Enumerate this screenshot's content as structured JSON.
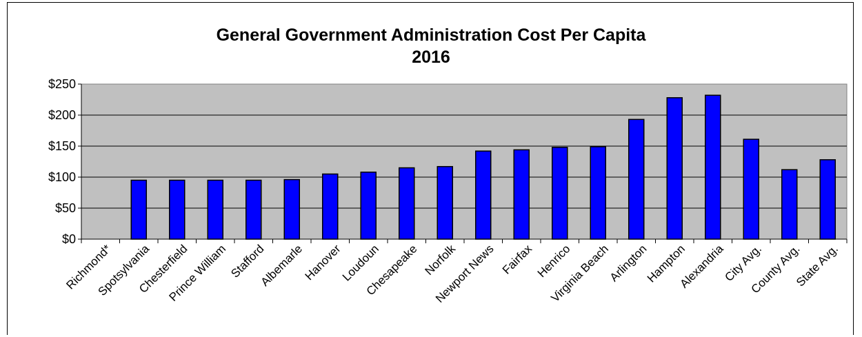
{
  "chart_data": {
    "type": "bar",
    "title": "General Government Administration  Cost Per Capita",
    "subtitle": "2016",
    "xlabel": "",
    "ylabel": "",
    "ylim": [
      0,
      250
    ],
    "yticks": [
      "$0",
      "$50",
      "$100",
      "$150",
      "$200",
      "$250"
    ],
    "ytick_values": [
      0,
      50,
      100,
      150,
      200,
      250
    ],
    "grid": true,
    "legend": "none",
    "categories": [
      "Richmond*",
      "Spotsylvania",
      "Chesterfield",
      "Prince William",
      "Stafford",
      "Albemarle",
      "Hanover",
      "Loudoun",
      "Chesapeake",
      "Norfolk",
      "Newport News",
      "Fairfax",
      "Henrico",
      "Virginia Beach",
      "Arlington",
      "Hampton",
      "Alexandria",
      "City Avg.",
      "County Avg.",
      "State Avg."
    ],
    "values": [
      0,
      95,
      95,
      95,
      95,
      96,
      105,
      108,
      115,
      117,
      142,
      144,
      148,
      149,
      193,
      228,
      232,
      161,
      112,
      128
    ],
    "colors": {
      "bar": "#0000ff",
      "bar_stroke": "#000000",
      "plot_background": "#c0c0c0",
      "gridline": "#000000"
    }
  }
}
